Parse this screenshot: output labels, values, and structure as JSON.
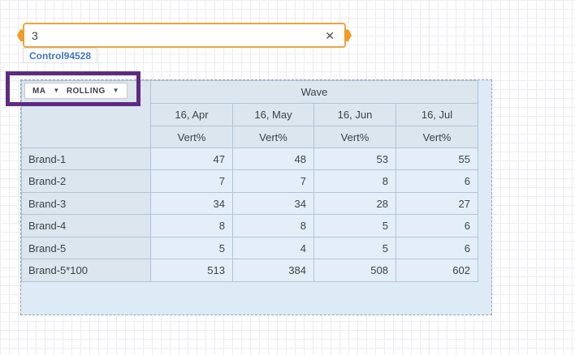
{
  "number_input": {
    "value": "3",
    "clear_icon": "✕"
  },
  "control_chip": {
    "label": "Control94528"
  },
  "toolbar": {
    "ma_dropdown_label": "MA",
    "rolling_dropdown_label": "ROLLING",
    "caret_icon": "▼"
  },
  "chart_data": {
    "type": "table",
    "group_header": "Wave",
    "wave_columns": [
      "16, Apr",
      "16, May",
      "16, Jun",
      "16, Jul"
    ],
    "measure_label": "Vert%",
    "rows": [
      {
        "label": "Brand-1",
        "values": [
          47,
          48,
          53,
          55
        ]
      },
      {
        "label": "Brand-2",
        "values": [
          7,
          7,
          8,
          6
        ]
      },
      {
        "label": "Brand-3",
        "values": [
          34,
          34,
          28,
          27
        ]
      },
      {
        "label": "Brand-4",
        "values": [
          8,
          8,
          5,
          6
        ]
      },
      {
        "label": "Brand-5",
        "values": [
          5,
          4,
          5,
          6
        ]
      },
      {
        "label": "Brand-5*100",
        "values": [
          513,
          384,
          508,
          602
        ]
      }
    ]
  },
  "colors": {
    "selection_orange": "#f0a43c",
    "highlight_purple": "#5d2b82",
    "header_bg": "#dbe6ef",
    "cell_bg": "#e3eef8",
    "container_bg": "#ddebf7",
    "chip_text_blue": "#4176c4"
  }
}
